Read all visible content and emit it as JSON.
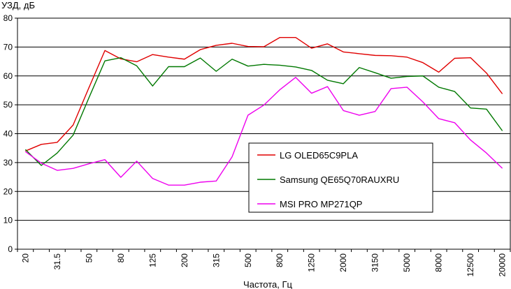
{
  "chart_data": {
    "type": "line",
    "title": "",
    "ylabel": "УЗД, дБ",
    "xlabel": "Частота, Гц",
    "ylim": [
      0,
      80
    ],
    "yticks": [
      0,
      10,
      20,
      30,
      40,
      50,
      60,
      70,
      80
    ],
    "grid": true,
    "legend_position": "center-right",
    "x_tick_labels": [
      "20",
      "31.5",
      "50",
      "80",
      "125",
      "200",
      "315",
      "500",
      "800",
      "1250",
      "2000",
      "3150",
      "5000",
      "8000",
      "12500",
      "20000"
    ],
    "x": [
      20,
      25,
      31.5,
      40,
      50,
      63,
      80,
      100,
      125,
      160,
      200,
      250,
      315,
      400,
      500,
      630,
      800,
      1000,
      1250,
      1600,
      2000,
      2500,
      3150,
      4000,
      5000,
      6300,
      8000,
      10000,
      12500,
      16000,
      20000
    ],
    "series": [
      {
        "name": "LG OLED65C9PLA",
        "color": "#e00000",
        "values": [
          34.0,
          36.3,
          37.0,
          43.0,
          56.0,
          68.8,
          65.9,
          64.9,
          67.4,
          66.5,
          65.8,
          69.1,
          70.6,
          71.3,
          70.2,
          70.1,
          73.3,
          73.3,
          69.6,
          71.1,
          68.3,
          67.7,
          67.1,
          67.0,
          66.5,
          64.6,
          61.3,
          66.1,
          66.3,
          61.0,
          53.8
        ]
      },
      {
        "name": "Samsung QE65Q70RAUXRU",
        "color": "#007800",
        "values": [
          34.5,
          29.0,
          33.3,
          39.5,
          52.5,
          65.2,
          66.3,
          63.5,
          56.5,
          63.2,
          63.2,
          66.2,
          61.6,
          65.8,
          63.4,
          64.0,
          63.7,
          63.1,
          61.9,
          58.5,
          57.3,
          62.9,
          61.1,
          59.2,
          59.8,
          60.0,
          56.1,
          54.6,
          48.9,
          48.5,
          41.0
        ]
      },
      {
        "name": "MSI PRO MP271QP",
        "color": "#ee00ee",
        "values": [
          33.8,
          29.8,
          27.3,
          28.0,
          29.6,
          31.0,
          24.9,
          30.5,
          24.5,
          22.2,
          22.2,
          23.2,
          23.6,
          32.0,
          46.4,
          49.9,
          55.2,
          59.5,
          54.0,
          56.3,
          48.0,
          46.4,
          47.7,
          55.6,
          56.1,
          51.0,
          45.2,
          43.8,
          37.8,
          33.3,
          28.0
        ]
      }
    ]
  }
}
